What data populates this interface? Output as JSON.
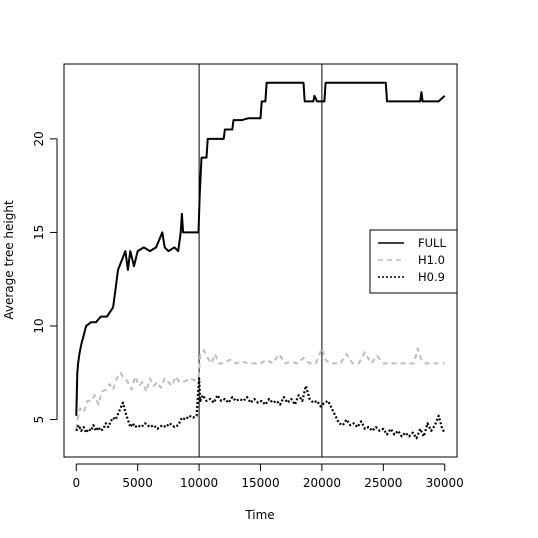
{
  "chart_data": {
    "type": "line",
    "title": "",
    "xlabel": "Time",
    "ylabel": "Average tree height",
    "xlim": [
      -1000,
      31000
    ],
    "ylim": [
      3,
      24
    ],
    "x_ticks": [
      0,
      5000,
      10000,
      15000,
      20000,
      25000,
      30000
    ],
    "y_ticks": [
      5,
      10,
      15,
      20
    ],
    "vertical_reference_lines": [
      10000,
      20000
    ],
    "grid": false,
    "legend_position": "right",
    "series": [
      {
        "name": "FULL",
        "color": "#000000",
        "style": "solid",
        "points": [
          [
            0,
            5.2
          ],
          [
            80,
            7.5
          ],
          [
            150,
            8.0
          ],
          [
            250,
            8.5
          ],
          [
            400,
            9.0
          ],
          [
            600,
            9.5
          ],
          [
            800,
            10.0
          ],
          [
            1200,
            10.2
          ],
          [
            1600,
            10.2
          ],
          [
            2000,
            10.5
          ],
          [
            2500,
            10.5
          ],
          [
            3000,
            11.0
          ],
          [
            3200,
            12.0
          ],
          [
            3400,
            13.0
          ],
          [
            3700,
            13.5
          ],
          [
            4000,
            14.0
          ],
          [
            4200,
            13.0
          ],
          [
            4400,
            14.0
          ],
          [
            4700,
            13.2
          ],
          [
            5000,
            14.0
          ],
          [
            5500,
            14.2
          ],
          [
            6000,
            14.0
          ],
          [
            6500,
            14.2
          ],
          [
            7000,
            15.0
          ],
          [
            7200,
            14.2
          ],
          [
            7500,
            14.0
          ],
          [
            8000,
            14.2
          ],
          [
            8300,
            14.0
          ],
          [
            8500,
            15.0
          ],
          [
            8600,
            16.0
          ],
          [
            8700,
            15.0
          ],
          [
            9500,
            15.0
          ],
          [
            9950,
            15.0
          ],
          [
            10050,
            17.0
          ],
          [
            10200,
            19.0
          ],
          [
            10600,
            19.0
          ],
          [
            10700,
            20.0
          ],
          [
            11000,
            20.0
          ],
          [
            12000,
            20.0
          ],
          [
            12100,
            20.5
          ],
          [
            12700,
            20.5
          ],
          [
            12800,
            21.0
          ],
          [
            13500,
            21.0
          ],
          [
            14000,
            21.1
          ],
          [
            15000,
            21.1
          ],
          [
            15100,
            22.0
          ],
          [
            15400,
            22.0
          ],
          [
            15500,
            23.0
          ],
          [
            16500,
            23.0
          ],
          [
            17500,
            23.0
          ],
          [
            18500,
            23.0
          ],
          [
            18600,
            22.0
          ],
          [
            19300,
            22.0
          ],
          [
            19400,
            22.3
          ],
          [
            19600,
            22.0
          ],
          [
            20000,
            22.0
          ],
          [
            20200,
            22.0
          ],
          [
            20300,
            23.0
          ],
          [
            22000,
            23.0
          ],
          [
            24000,
            23.0
          ],
          [
            25200,
            23.0
          ],
          [
            25300,
            22.0
          ],
          [
            26000,
            22.0
          ],
          [
            27000,
            22.0
          ],
          [
            28000,
            22.0
          ],
          [
            28100,
            22.5
          ],
          [
            28200,
            22.0
          ],
          [
            29500,
            22.0
          ],
          [
            30000,
            22.3
          ]
        ]
      },
      {
        "name": "H1.0",
        "color": "#bdbdbd",
        "style": "dashed",
        "points": [
          [
            0,
            4.5
          ],
          [
            100,
            5.0
          ],
          [
            300,
            5.6
          ],
          [
            600,
            5.4
          ],
          [
            900,
            6.0
          ],
          [
            1200,
            6.0
          ],
          [
            1500,
            6.3
          ],
          [
            1800,
            5.8
          ],
          [
            2100,
            6.5
          ],
          [
            2400,
            6.6
          ],
          [
            2700,
            6.9
          ],
          [
            3000,
            6.6
          ],
          [
            3300,
            7.2
          ],
          [
            3600,
            7.5
          ],
          [
            3900,
            7.2
          ],
          [
            4200,
            7.0
          ],
          [
            4500,
            6.6
          ],
          [
            4800,
            7.3
          ],
          [
            5100,
            6.8
          ],
          [
            5400,
            7.0
          ],
          [
            5700,
            6.5
          ],
          [
            6000,
            7.2
          ],
          [
            6300,
            6.8
          ],
          [
            6600,
            7.0
          ],
          [
            6900,
            6.7
          ],
          [
            7200,
            7.2
          ],
          [
            7500,
            7.0
          ],
          [
            7800,
            6.8
          ],
          [
            8100,
            7.3
          ],
          [
            8400,
            7.0
          ],
          [
            8700,
            7.0
          ],
          [
            9000,
            7.1
          ],
          [
            9300,
            7.2
          ],
          [
            9600,
            7.1
          ],
          [
            9950,
            7.2
          ],
          [
            10100,
            8.5
          ],
          [
            10400,
            8.7
          ],
          [
            10700,
            8.3
          ],
          [
            11000,
            8.0
          ],
          [
            11300,
            8.5
          ],
          [
            11600,
            8.0
          ],
          [
            12000,
            8.0
          ],
          [
            12500,
            8.2
          ],
          [
            13000,
            8.0
          ],
          [
            13500,
            8.1
          ],
          [
            14000,
            8.0
          ],
          [
            14500,
            8.0
          ],
          [
            15000,
            8.0
          ],
          [
            15500,
            8.2
          ],
          [
            16000,
            8.0
          ],
          [
            16500,
            8.5
          ],
          [
            17000,
            8.0
          ],
          [
            17500,
            8.1
          ],
          [
            18000,
            8.0
          ],
          [
            18500,
            8.3
          ],
          [
            19000,
            8.0
          ],
          [
            19500,
            8.0
          ],
          [
            20000,
            8.8
          ],
          [
            20300,
            8.2
          ],
          [
            20600,
            8.0
          ],
          [
            21000,
            8.0
          ],
          [
            21500,
            8.0
          ],
          [
            22000,
            8.5
          ],
          [
            22500,
            8.0
          ],
          [
            23000,
            8.0
          ],
          [
            23500,
            8.6
          ],
          [
            24000,
            8.0
          ],
          [
            24500,
            8.4
          ],
          [
            25000,
            8.0
          ],
          [
            25500,
            8.0
          ],
          [
            26000,
            8.0
          ],
          [
            27000,
            8.0
          ],
          [
            27500,
            8.0
          ],
          [
            27800,
            8.8
          ],
          [
            28100,
            8.2
          ],
          [
            28500,
            8.0
          ],
          [
            29000,
            8.0
          ],
          [
            29500,
            8.0
          ],
          [
            30000,
            8.0
          ]
        ]
      },
      {
        "name": "H0.9",
        "color": "#000000",
        "style": "dotted",
        "points": [
          [
            0,
            4.4
          ],
          [
            200,
            4.7
          ],
          [
            400,
            4.4
          ],
          [
            600,
            4.6
          ],
          [
            800,
            4.3
          ],
          [
            1000,
            4.5
          ],
          [
            1200,
            4.4
          ],
          [
            1400,
            4.7
          ],
          [
            1600,
            4.4
          ],
          [
            1800,
            4.6
          ],
          [
            2000,
            4.4
          ],
          [
            2200,
            4.5
          ],
          [
            2400,
            4.8
          ],
          [
            2600,
            4.6
          ],
          [
            2800,
            4.9
          ],
          [
            3000,
            5.1
          ],
          [
            3200,
            5.0
          ],
          [
            3400,
            5.3
          ],
          [
            3600,
            5.6
          ],
          [
            3800,
            5.9
          ],
          [
            4000,
            5.4
          ],
          [
            4200,
            5.0
          ],
          [
            4400,
            4.6
          ],
          [
            4600,
            4.8
          ],
          [
            4800,
            4.6
          ],
          [
            5000,
            4.7
          ],
          [
            5300,
            4.6
          ],
          [
            5600,
            4.8
          ],
          [
            6000,
            4.6
          ],
          [
            6300,
            4.7
          ],
          [
            6600,
            4.5
          ],
          [
            7000,
            4.7
          ],
          [
            7300,
            4.6
          ],
          [
            7600,
            4.8
          ],
          [
            8000,
            4.6
          ],
          [
            8300,
            4.7
          ],
          [
            8600,
            5.1
          ],
          [
            8900,
            5.0
          ],
          [
            9200,
            5.2
          ],
          [
            9500,
            5.1
          ],
          [
            9800,
            5.2
          ],
          [
            10000,
            7.2
          ],
          [
            10100,
            6.0
          ],
          [
            10300,
            6.3
          ],
          [
            10600,
            6.0
          ],
          [
            10900,
            6.1
          ],
          [
            11200,
            5.9
          ],
          [
            11500,
            6.3
          ],
          [
            11800,
            6.0
          ],
          [
            12100,
            6.1
          ],
          [
            12400,
            5.9
          ],
          [
            12700,
            6.2
          ],
          [
            13000,
            6.0
          ],
          [
            13300,
            6.1
          ],
          [
            13600,
            6.0
          ],
          [
            13900,
            6.2
          ],
          [
            14200,
            5.9
          ],
          [
            14500,
            6.1
          ],
          [
            14800,
            5.9
          ],
          [
            15100,
            6.0
          ],
          [
            15400,
            5.8
          ],
          [
            15700,
            6.1
          ],
          [
            16000,
            5.9
          ],
          [
            16300,
            6.0
          ],
          [
            16600,
            5.8
          ],
          [
            16900,
            6.2
          ],
          [
            17200,
            5.9
          ],
          [
            17500,
            6.1
          ],
          [
            17800,
            5.8
          ],
          [
            18100,
            6.3
          ],
          [
            18400,
            6.0
          ],
          [
            18700,
            6.8
          ],
          [
            19000,
            6.1
          ],
          [
            19300,
            5.9
          ],
          [
            19600,
            6.0
          ],
          [
            19900,
            5.7
          ],
          [
            20200,
            5.9
          ],
          [
            20500,
            6.0
          ],
          [
            20800,
            5.6
          ],
          [
            21100,
            5.2
          ],
          [
            21400,
            4.8
          ],
          [
            21700,
            4.7
          ],
          [
            22000,
            5.0
          ],
          [
            22300,
            4.7
          ],
          [
            22600,
            4.8
          ],
          [
            22900,
            4.6
          ],
          [
            23200,
            4.9
          ],
          [
            23500,
            4.5
          ],
          [
            23800,
            4.6
          ],
          [
            24100,
            4.4
          ],
          [
            24400,
            4.6
          ],
          [
            24700,
            4.4
          ],
          [
            25000,
            4.5
          ],
          [
            25300,
            4.2
          ],
          [
            25600,
            4.5
          ],
          [
            25900,
            4.2
          ],
          [
            26200,
            4.4
          ],
          [
            26500,
            4.1
          ],
          [
            26800,
            4.3
          ],
          [
            27100,
            4.1
          ],
          [
            27400,
            4.3
          ],
          [
            27700,
            4.0
          ],
          [
            28000,
            4.5
          ],
          [
            28300,
            4.1
          ],
          [
            28600,
            4.8
          ],
          [
            28900,
            4.4
          ],
          [
            29200,
            4.7
          ],
          [
            29500,
            5.2
          ],
          [
            29800,
            4.5
          ],
          [
            30000,
            4.3
          ]
        ]
      }
    ]
  }
}
